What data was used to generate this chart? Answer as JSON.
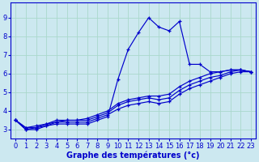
{
  "title": "Graphe des températures (°c)",
  "background_color": "#cce8f0",
  "grid_color": "#aad8cc",
  "line_color": "#0000cc",
  "xlim": [
    -0.5,
    23.5
  ],
  "ylim": [
    2.5,
    9.8
  ],
  "xticks": [
    0,
    1,
    2,
    3,
    4,
    5,
    6,
    7,
    8,
    9,
    10,
    11,
    12,
    13,
    14,
    15,
    16,
    17,
    18,
    19,
    20,
    21,
    22,
    23
  ],
  "yticks": [
    3,
    4,
    5,
    6,
    7,
    8,
    9
  ],
  "series": [
    [
      3.5,
      3.0,
      3.0,
      3.2,
      3.3,
      3.3,
      3.3,
      3.3,
      3.5,
      3.7,
      5.7,
      7.3,
      8.2,
      9.0,
      8.5,
      8.3,
      8.8,
      6.5,
      6.5,
      6.1,
      6.1,
      6.2,
      6.2,
      6.1
    ],
    [
      3.5,
      3.0,
      3.1,
      3.2,
      3.4,
      3.4,
      3.4,
      3.4,
      3.6,
      3.8,
      4.1,
      4.3,
      4.4,
      4.5,
      4.4,
      4.5,
      4.9,
      5.2,
      5.4,
      5.6,
      5.8,
      6.0,
      6.1,
      6.1
    ],
    [
      3.5,
      3.1,
      3.1,
      3.3,
      3.4,
      3.5,
      3.5,
      3.5,
      3.7,
      3.9,
      4.3,
      4.5,
      4.6,
      4.7,
      4.6,
      4.7,
      5.1,
      5.4,
      5.6,
      5.8,
      5.9,
      6.1,
      6.2,
      6.1
    ],
    [
      3.5,
      3.1,
      3.2,
      3.3,
      3.5,
      3.5,
      3.5,
      3.6,
      3.8,
      4.0,
      4.4,
      4.6,
      4.7,
      4.8,
      4.8,
      4.9,
      5.3,
      5.6,
      5.8,
      6.0,
      6.1,
      6.2,
      6.2,
      6.1
    ]
  ],
  "marker": "+",
  "markersize": 3.5,
  "linewidth": 0.85,
  "xlabel_fontsize": 7,
  "tick_labelsize": 6
}
